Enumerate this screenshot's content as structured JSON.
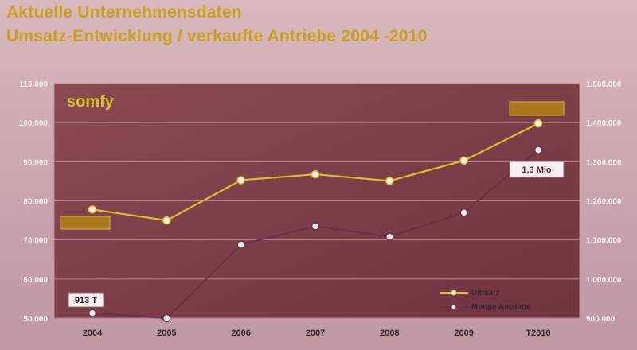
{
  "title": "Aktuelle Unternehmensdaten",
  "subtitle": "Umsatz-Entwicklung / verkaufte Antriebe 2004 -2010",
  "brand": "somfy",
  "colors": {
    "umsatz": "#d8c02a",
    "antriebe": "#6a3048",
    "title": "#c8a020",
    "plot_bg": "#7b3f48",
    "badge": "#a8781c"
  },
  "chart_data": {
    "type": "line",
    "categories": [
      "2004",
      "2005",
      "2006",
      "2007",
      "2008",
      "2009",
      "T2010"
    ],
    "series": [
      {
        "name": "Umsatz",
        "axis": "left",
        "values": [
          77800,
          75000,
          85300,
          86800,
          85100,
          90300,
          99800
        ]
      },
      {
        "name": "Menge Antriebe",
        "axis": "right",
        "values": [
          913000,
          898000,
          1088000,
          1135000,
          1108000,
          1170000,
          1330000
        ]
      }
    ],
    "ylim_left": [
      50000,
      110000
    ],
    "yticks_left": [
      "50.000",
      "60.000",
      "70.000",
      "80.000",
      "90.000",
      "100.000",
      "110.000"
    ],
    "ylim_right": [
      900000,
      1500000
    ],
    "yticks_right": [
      "900.000",
      "1.000.000",
      "1.100.000",
      "1.200.000",
      "1.300.000",
      "1.400.000",
      "1.500.000"
    ],
    "grid": true,
    "legend": "bottom-right",
    "annotations": {
      "antriebe_start": "913 T",
      "antriebe_end": "1,3 Mio"
    }
  }
}
